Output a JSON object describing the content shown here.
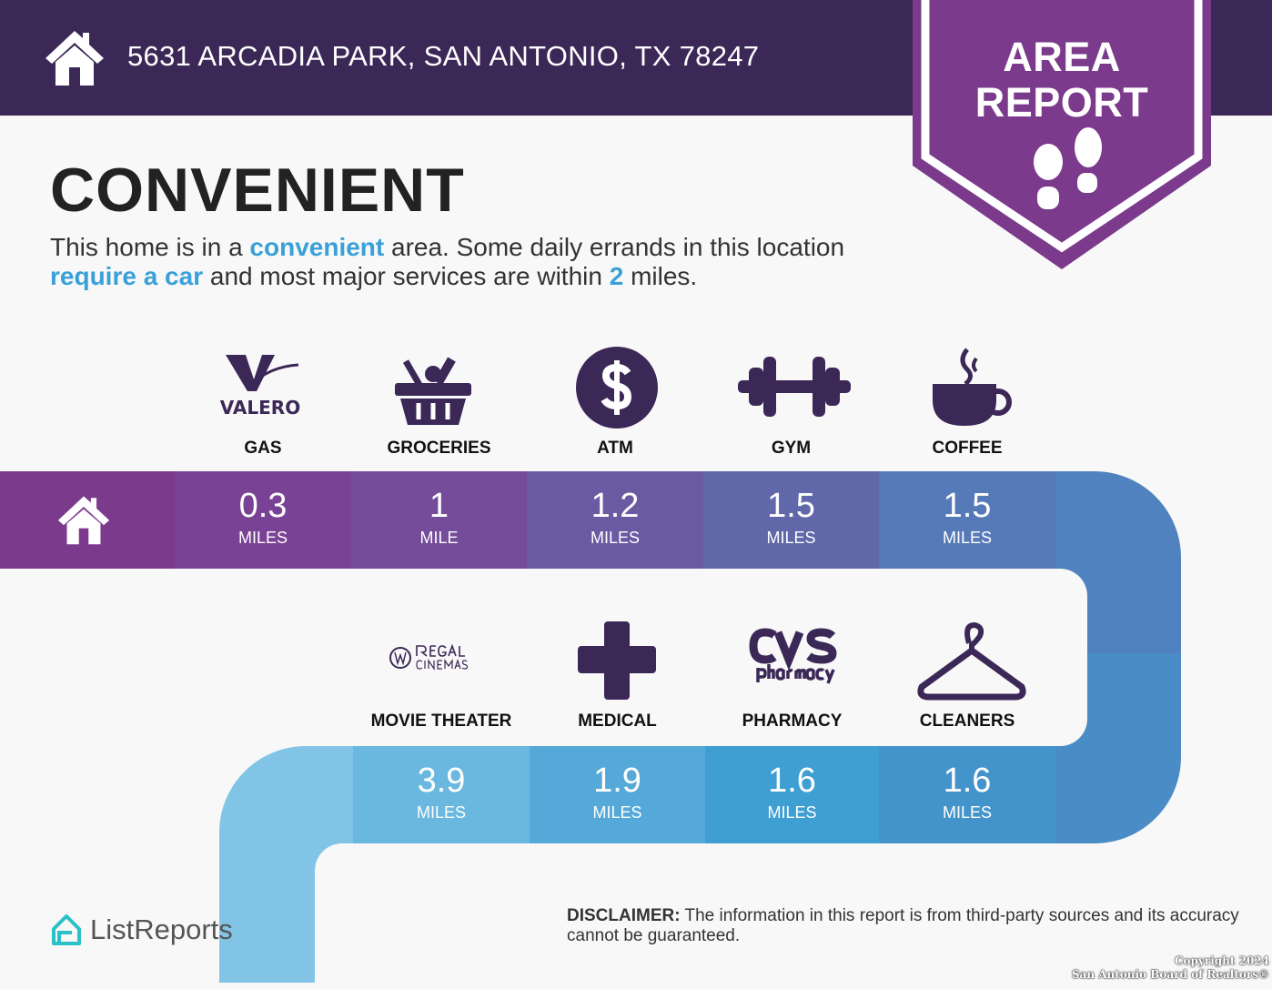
{
  "header": {
    "address": "5631 ARCADIA PARK, SAN ANTONIO, TX 78247",
    "badge_line1": "AREA",
    "badge_line2": "REPORT"
  },
  "title": "CONVENIENT",
  "description": {
    "p1": "This home is in a ",
    "h1": "convenient",
    "p2": " area. Some daily errands in this location ",
    "h2": "require a car",
    "p3": " and most major services are within ",
    "h3": "2",
    "p4": " miles."
  },
  "row1": [
    {
      "category": "GAS",
      "icon": "valero-logo",
      "logo_text": "VALERO",
      "value": "0.3",
      "unit": "MILES",
      "color": "#7a4294"
    },
    {
      "category": "GROCERIES",
      "icon": "grocery-basket-icon",
      "value": "1",
      "unit": "MILE",
      "color": "#744c9a"
    },
    {
      "category": "ATM",
      "icon": "dollar-icon",
      "value": "1.2",
      "unit": "MILES",
      "color": "#6a5aa2"
    },
    {
      "category": "GYM",
      "icon": "dumbbell-icon",
      "value": "1.5",
      "unit": "MILES",
      "color": "#6068aa"
    },
    {
      "category": "COFFEE",
      "icon": "coffee-cup-icon",
      "value": "1.5",
      "unit": "MILES",
      "color": "#567ab8"
    }
  ],
  "row2": [
    {
      "category": "MOVIE THEATER",
      "icon": "regal-cinemas-logo",
      "logo_text": "REGAL CINEMAS",
      "value": "3.9",
      "unit": "MILES",
      "color": "#6ab7df"
    },
    {
      "category": "MEDICAL",
      "icon": "medical-cross-icon",
      "value": "1.9",
      "unit": "MILES",
      "color": "#55a9d8"
    },
    {
      "category": "PHARMACY",
      "icon": "cvs-pharmacy-logo",
      "logo_text": "CVS pharmacy",
      "value": "1.6",
      "unit": "MILES",
      "color": "#3f9ed2"
    },
    {
      "category": "CLEANERS",
      "icon": "hanger-icon",
      "value": "1.6",
      "unit": "MILES",
      "color": "#4494cc"
    }
  ],
  "footer": {
    "brand": "ListReports",
    "disclaimer_label": "DISCLAIMER:",
    "disclaimer_text": " The information in this report is from third-party sources and its accuracy cannot be guaranteed.",
    "copyright1": "Copyright 2024",
    "copyright2": "San Antonio Board of Realtors®"
  },
  "colors": {
    "header": "#3b2857",
    "badge": "#7b3a8c",
    "accent": "#3aa0d8",
    "icon": "#3b2857"
  }
}
